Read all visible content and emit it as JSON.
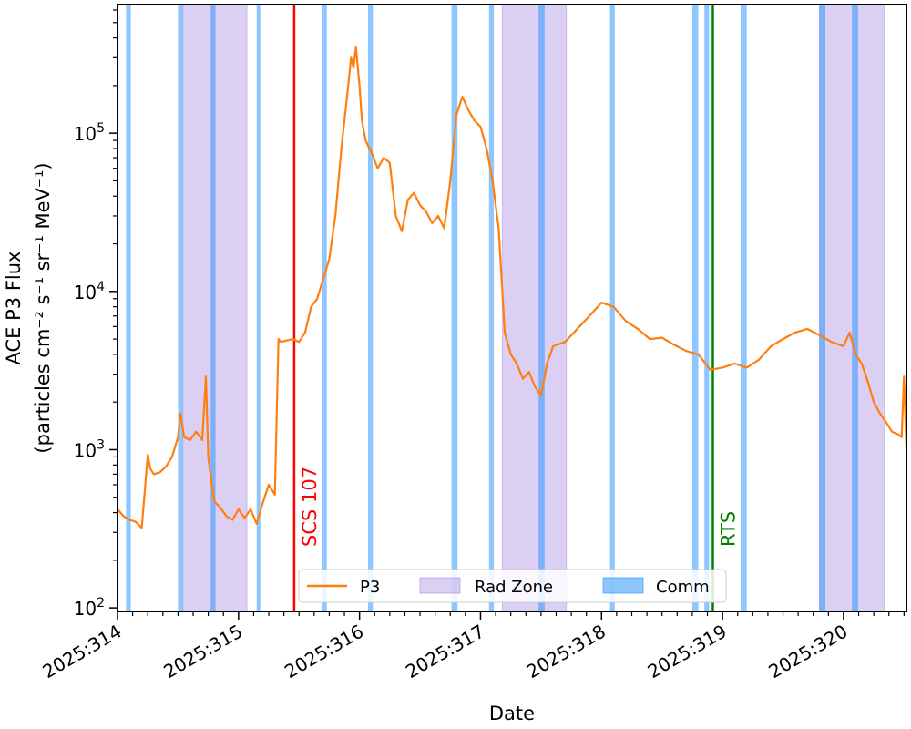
{
  "chart_data": {
    "type": "line",
    "title": "",
    "xlabel": "Date",
    "ylabel_line1": "ACE P3 Flux",
    "ylabel_line2": "(particles cm⁻² s⁻¹ sr⁻¹ MeV⁻¹)",
    "y_scale": "log",
    "ylim": [
      95,
      650000
    ],
    "xlim": [
      314.0,
      320.52
    ],
    "x_ticks": [
      {
        "value": 314,
        "label": "2025:314"
      },
      {
        "value": 315,
        "label": "2025:315"
      },
      {
        "value": 316,
        "label": "2025:316"
      },
      {
        "value": 317,
        "label": "2025:317"
      },
      {
        "value": 318,
        "label": "2025:318"
      },
      {
        "value": 319,
        "label": "2025:319"
      },
      {
        "value": 320,
        "label": "2025:320"
      }
    ],
    "y_ticks": [
      {
        "value": 100,
        "base": "10",
        "exp": "2"
      },
      {
        "value": 1000,
        "base": "10",
        "exp": "3"
      },
      {
        "value": 10000,
        "base": "10",
        "exp": "4"
      },
      {
        "value": 100000,
        "base": "10",
        "exp": "5"
      }
    ],
    "legend": {
      "location": "lower-center",
      "entries": [
        {
          "label": "P3",
          "kind": "line",
          "color": "#ff7f0e"
        },
        {
          "label": "Rad Zone",
          "kind": "patch",
          "color": "#9370db"
        },
        {
          "label": "Comm",
          "kind": "patch",
          "color": "#1e90ff"
        }
      ]
    },
    "rad_zones": [
      [
        314.54,
        315.07
      ],
      [
        317.18,
        317.71
      ],
      [
        319.8,
        320.34
      ]
    ],
    "comm_passes": [
      [
        314.07,
        314.11
      ],
      [
        314.5,
        314.54
      ],
      [
        314.77,
        314.81
      ],
      [
        315.15,
        315.18
      ],
      [
        315.69,
        315.73
      ],
      [
        316.07,
        316.11
      ],
      [
        316.76,
        316.81
      ],
      [
        317.07,
        317.11
      ],
      [
        317.48,
        317.53
      ],
      [
        318.07,
        318.11
      ],
      [
        318.75,
        318.8
      ],
      [
        318.85,
        318.89
      ],
      [
        319.15,
        319.2
      ],
      [
        319.8,
        319.85
      ],
      [
        320.07,
        320.12
      ]
    ],
    "events": [
      {
        "label": "SCS 107",
        "x": 315.46,
        "color": "#ff0000"
      },
      {
        "label": "RTS",
        "x": 318.92,
        "color": "#008000"
      }
    ],
    "series": [
      {
        "name": "P3",
        "color": "#ff7f0e",
        "x": [
          314.0,
          314.05,
          314.1,
          314.15,
          314.2,
          314.25,
          314.27,
          314.3,
          314.35,
          314.4,
          314.45,
          314.5,
          314.52,
          314.55,
          314.6,
          314.65,
          314.7,
          314.73,
          314.75,
          314.78,
          314.8,
          314.85,
          314.9,
          314.95,
          315.0,
          315.05,
          315.1,
          315.15,
          315.2,
          315.25,
          315.3,
          315.33,
          315.35,
          315.4,
          315.45,
          315.5,
          315.55,
          315.6,
          315.65,
          315.7,
          315.75,
          315.8,
          315.85,
          315.9,
          315.93,
          315.95,
          315.97,
          316.0,
          316.02,
          316.05,
          316.1,
          316.15,
          316.2,
          316.25,
          316.3,
          316.35,
          316.4,
          316.45,
          316.5,
          316.55,
          316.6,
          316.65,
          316.7,
          316.75,
          316.8,
          316.85,
          316.9,
          316.95,
          317.0,
          317.05,
          317.1,
          317.15,
          317.2,
          317.25,
          317.3,
          317.35,
          317.4,
          317.45,
          317.5,
          317.55,
          317.6,
          317.7,
          317.8,
          317.9,
          318.0,
          318.1,
          318.2,
          318.3,
          318.4,
          318.5,
          318.6,
          318.7,
          318.8,
          318.9,
          319.0,
          319.1,
          319.2,
          319.3,
          319.4,
          319.5,
          319.6,
          319.7,
          319.8,
          319.9,
          320.0,
          320.05,
          320.1,
          320.15,
          320.2,
          320.25,
          320.3,
          320.35,
          320.4,
          320.45,
          320.48,
          320.5,
          320.52
        ],
        "values": [
          420,
          380,
          360,
          350,
          320,
          930,
          760,
          700,
          720,
          780,
          900,
          1200,
          1700,
          1200,
          1150,
          1300,
          1150,
          2900,
          900,
          600,
          470,
          430,
          380,
          360,
          420,
          370,
          420,
          340,
          460,
          600,
          520,
          5000,
          4800,
          4900,
          5000,
          4800,
          5500,
          8000,
          9000,
          12000,
          16000,
          30000,
          80000,
          180000,
          300000,
          260000,
          350000,
          200000,
          120000,
          90000,
          75000,
          60000,
          70000,
          65000,
          30000,
          24000,
          38000,
          42000,
          35000,
          32000,
          27000,
          30000,
          25000,
          50000,
          130000,
          170000,
          140000,
          120000,
          110000,
          80000,
          50000,
          25000,
          5500,
          4000,
          3500,
          2800,
          3100,
          2500,
          2200,
          3500,
          4500,
          4800,
          5800,
          7000,
          8500,
          8000,
          6500,
          5800,
          5000,
          5100,
          4600,
          4200,
          4000,
          3200,
          3300,
          3500,
          3300,
          3700,
          4500,
          5000,
          5500,
          5800,
          5300,
          4800,
          4500,
          5500,
          4000,
          3500,
          2700,
          2000,
          1700,
          1500,
          1300,
          1250,
          1200,
          2900,
          1000
        ]
      }
    ]
  }
}
